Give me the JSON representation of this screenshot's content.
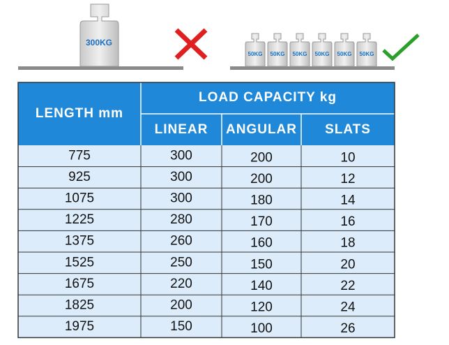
{
  "illustration": {
    "single_weight": "300KG",
    "small_weights": [
      "50KG",
      "50KG",
      "50KG",
      "50KG",
      "50KG",
      "50KG"
    ]
  },
  "table": {
    "header": {
      "length": "LENGTH mm",
      "load_capacity": "LOAD CAPACITY kg",
      "columns": [
        "LINEAR",
        "ANGULAR",
        "SLATS"
      ]
    },
    "rows": [
      [
        775,
        300,
        200,
        10
      ],
      [
        925,
        300,
        200,
        12
      ],
      [
        1075,
        300,
        180,
        14
      ],
      [
        1225,
        280,
        170,
        16
      ],
      [
        1375,
        260,
        160,
        18
      ],
      [
        1525,
        250,
        150,
        20
      ],
      [
        1675,
        220,
        140,
        22
      ],
      [
        1825,
        200,
        120,
        24
      ],
      [
        1975,
        150,
        100,
        26
      ]
    ]
  }
}
